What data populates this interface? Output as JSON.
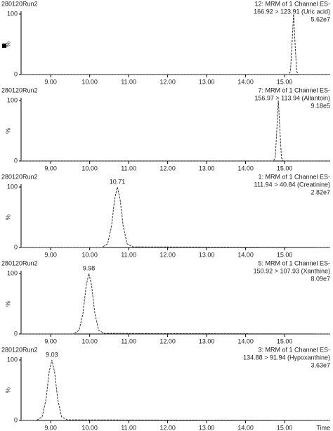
{
  "chart_data": [
    {
      "type": "line",
      "run": "280120Run2",
      "header": [
        "12: MRM of 1 Channel ES-",
        "166.92 > 123.91 (Uric acid)",
        "5.62e7"
      ],
      "ylabel": "%",
      "xlim": [
        8.24,
        16.17
      ],
      "ylim": [
        0,
        100
      ],
      "yticks": [
        0,
        100
      ],
      "xticks": [
        {
          "value": 9,
          "label": "9.00"
        },
        {
          "value": 10,
          "label": "10.00"
        },
        {
          "value": 11,
          "label": "11.00"
        },
        {
          "value": 12,
          "label": "12.00"
        },
        {
          "value": 13,
          "label": "13.00"
        },
        {
          "value": 14,
          "label": "14.00"
        },
        {
          "value": 15,
          "label": "15.00"
        }
      ],
      "x": [
        8.24,
        15.1,
        15.15,
        15.19,
        15.23,
        15.27,
        15.31,
        15.36,
        16.17
      ],
      "series": [
        {
          "color": "#333333",
          "values": [
            0,
            0,
            5,
            50,
            100,
            50,
            5,
            0,
            0
          ]
        }
      ]
    },
    {
      "type": "line",
      "run": "280120Run2",
      "header": [
        "7: MRM of 1 Channel ES-",
        "156.97 > 113.94 (Allantoin)",
        "9.18e5"
      ],
      "ylabel": "%",
      "xlim": [
        8.24,
        16.17
      ],
      "ylim": [
        0,
        100
      ],
      "yticks": [
        0,
        100
      ],
      "xticks": [
        {
          "value": 9,
          "label": "9.00"
        },
        {
          "value": 10,
          "label": "10.00"
        },
        {
          "value": 11,
          "label": "11.00"
        },
        {
          "value": 12,
          "label": "12.00"
        },
        {
          "value": 13,
          "label": "13.00"
        },
        {
          "value": 14,
          "label": "14.00"
        },
        {
          "value": 15,
          "label": "15.00"
        }
      ],
      "x": [
        8.24,
        14.71,
        14.76,
        14.8,
        14.84,
        14.88,
        14.92,
        14.97,
        16.17
      ],
      "series": [
        {
          "color": "#333333",
          "values": [
            0,
            0,
            5,
            50,
            100,
            50,
            5,
            0,
            0
          ]
        }
      ]
    },
    {
      "type": "line",
      "run": "280120Run2",
      "header": [
        "1: MRM of 1 Channel ES-",
        "111.94 > 40.84 (Creatinine)",
        "2.82e7"
      ],
      "ylabel": "%",
      "peak_label": "10.71",
      "xlim": [
        8.24,
        16.17
      ],
      "ylim": [
        0,
        100
      ],
      "yticks": [
        0,
        100
      ],
      "xticks": [
        {
          "value": 9,
          "label": "9.00"
        },
        {
          "value": 10,
          "label": "10.00"
        },
        {
          "value": 11,
          "label": "11.00"
        },
        {
          "value": 12,
          "label": "12.00"
        },
        {
          "value": 13,
          "label": "13.00"
        },
        {
          "value": 14,
          "label": "14.00"
        },
        {
          "value": 15,
          "label": "15.00"
        }
      ],
      "x": [
        8.24,
        10.31,
        10.46,
        10.56,
        10.64,
        10.71,
        10.78,
        10.86,
        10.96,
        11.11,
        16.17
      ],
      "series": [
        {
          "color": "#333333",
          "values": [
            0,
            0,
            6,
            35,
            80,
            100,
            80,
            35,
            6,
            1,
            0
          ]
        }
      ]
    },
    {
      "type": "line",
      "run": "280120Run2",
      "header": [
        "5: MRM of 1 Channel ES-",
        "150.92 > 107.93 (Xanthine)",
        "8.09e7"
      ],
      "ylabel": "%",
      "peak_label": "9.98",
      "xlim": [
        8.24,
        16.17
      ],
      "ylim": [
        0,
        100
      ],
      "yticks": [
        0,
        100
      ],
      "xticks": [
        {
          "value": 9,
          "label": "9.00"
        },
        {
          "value": 10,
          "label": "10.00"
        },
        {
          "value": 11,
          "label": "11.00"
        },
        {
          "value": 12,
          "label": "12.00"
        },
        {
          "value": 13,
          "label": "13.00"
        },
        {
          "value": 14,
          "label": "14.00"
        },
        {
          "value": 15,
          "label": "15.00"
        }
      ],
      "x": [
        8.24,
        9.58,
        9.73,
        9.83,
        9.91,
        9.98,
        10.05,
        10.13,
        10.23,
        10.38,
        16.17
      ],
      "series": [
        {
          "color": "#333333",
          "values": [
            0,
            0,
            6,
            35,
            80,
            100,
            80,
            35,
            6,
            1,
            0
          ]
        }
      ]
    },
    {
      "type": "line",
      "run": "280120Run2",
      "header": [
        "3: MRM of 1 Channel ES-",
        "134.88 > 91.94 (Hypoxanthine)",
        "3.63e7"
      ],
      "ylabel": "%",
      "peak_label": "9.03",
      "xlabel": "Time",
      "xlim": [
        8.24,
        16.17
      ],
      "ylim": [
        0,
        100
      ],
      "yticks": [
        0,
        100
      ],
      "xticks": [
        {
          "value": 9,
          "label": "9.00"
        },
        {
          "value": 10,
          "label": "10.00"
        },
        {
          "value": 11,
          "label": "11.00"
        },
        {
          "value": 12,
          "label": "12.00"
        },
        {
          "value": 13,
          "label": "13.00"
        },
        {
          "value": 14,
          "label": "14.00"
        },
        {
          "value": 15,
          "label": "15.00"
        }
      ],
      "x": [
        8.24,
        8.63,
        8.78,
        8.88,
        8.96,
        9.03,
        9.1,
        9.18,
        9.28,
        9.43,
        16.17
      ],
      "series": [
        {
          "color": "#333333",
          "values": [
            0,
            0,
            6,
            35,
            80,
            100,
            80,
            35,
            6,
            1,
            0
          ]
        }
      ]
    }
  ]
}
